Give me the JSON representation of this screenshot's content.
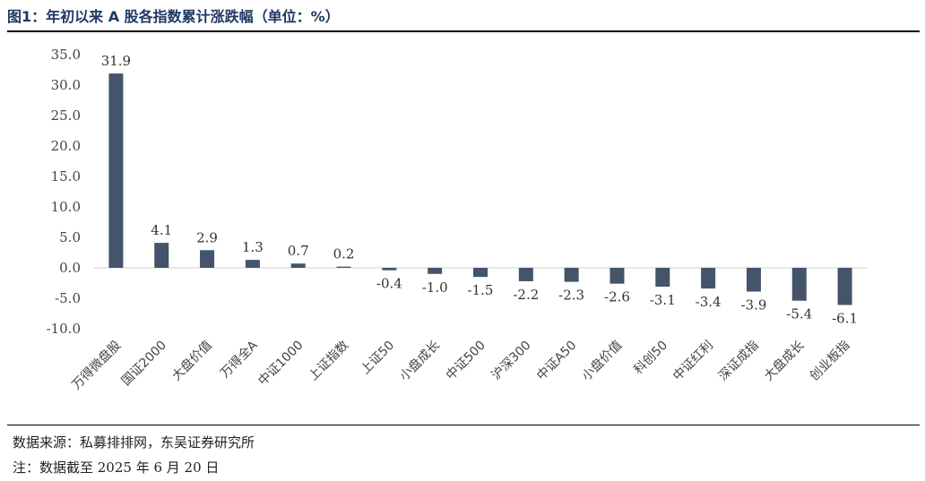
{
  "title": "图1：年初以来 A 股各指数累计涨跌幅（单位：%）",
  "source_note": "数据来源：私募排排网，东吴证券研究所",
  "date_note": "注：数据截至 2025 年 6 月 20 日",
  "colors": {
    "bar": "#44546a",
    "title": "#1f3864",
    "axis": "#d9d9d9"
  },
  "chart_data": {
    "type": "bar",
    "title": "图1：年初以来 A 股各指数累计涨跌幅（单位：%）",
    "xlabel": "",
    "ylabel": "",
    "categories": [
      "万得微盘股",
      "国证2000",
      "大盘价值",
      "万得全A",
      "中证1000",
      "上证指数",
      "上证50",
      "小盘成长",
      "中证500",
      "沪深300",
      "中证A50",
      "小盘价值",
      "科创50",
      "中证红利",
      "深证成指",
      "大盘成长",
      "创业板指"
    ],
    "values": [
      31.9,
      4.1,
      2.9,
      1.3,
      0.7,
      0.2,
      -0.4,
      -1.0,
      -1.5,
      -2.2,
      -2.3,
      -2.6,
      -3.1,
      -3.4,
      -3.9,
      -5.4,
      -6.1
    ],
    "data_labels": [
      "31.9",
      "4.1",
      "2.9",
      "1.3",
      "0.7",
      "0.2",
      "-0.4",
      "-1.0",
      "-1.5",
      "-2.2",
      "-2.3",
      "-2.6",
      "-3.1",
      "-3.4",
      "-3.9",
      "-5.4",
      "-6.1"
    ],
    "yticks": [
      "35.0",
      "30.0",
      "25.0",
      "20.0",
      "15.0",
      "10.0",
      "5.0",
      "0.0",
      "-5.0",
      "-10.0"
    ],
    "ylim": [
      -10,
      35
    ],
    "grid": false,
    "legend": "none"
  }
}
